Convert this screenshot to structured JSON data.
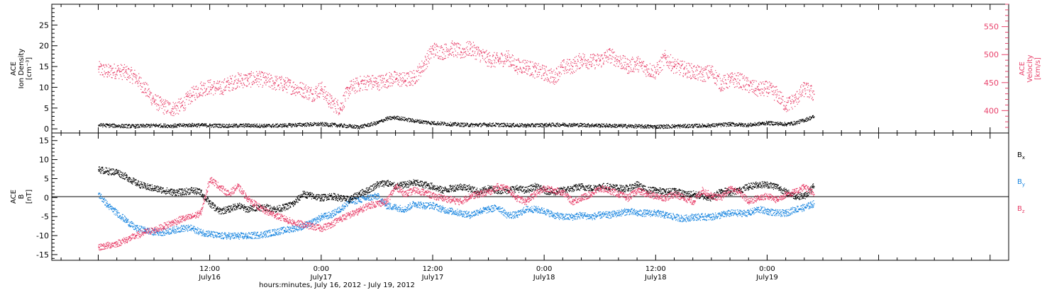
{
  "chart_data": [
    {
      "type": "scatter",
      "panel": "top",
      "ylabel_left": [
        "ACE",
        "Ion Density",
        "[cm⁻³]"
      ],
      "ylabel_right": [
        "ACE",
        "Velocity",
        "[km/s]"
      ],
      "ylim_left": [
        -1,
        30
      ],
      "ylim_right": [
        360,
        590
      ],
      "yticks_left": [
        0,
        5,
        10,
        15,
        20,
        25
      ],
      "yticks_right": [
        400,
        450,
        500,
        550
      ],
      "series": [
        {
          "axis": "left",
          "color": "#000000",
          "x_hours": [
            0,
            2,
            4,
            6,
            8,
            10,
            12,
            14,
            16,
            18,
            20,
            22,
            24,
            26,
            28,
            30,
            31,
            32,
            33,
            34,
            36,
            38,
            40,
            42,
            44,
            46,
            48,
            50,
            52,
            54,
            56,
            58,
            60,
            62,
            64,
            66,
            68,
            70,
            72,
            74,
            75,
            76,
            77
          ],
          "values": [
            1.0,
            0.8,
            0.7,
            0.9,
            0.8,
            1.0,
            0.9,
            0.8,
            0.9,
            0.8,
            0.9,
            1.1,
            1.2,
            0.9,
            0.5,
            1.5,
            2.5,
            2.8,
            2.4,
            2.0,
            1.5,
            1.2,
            1.0,
            1.1,
            1.0,
            0.9,
            1.0,
            1.1,
            1.0,
            0.9,
            0.8,
            0.7,
            0.6,
            0.7,
            0.8,
            0.9,
            1.2,
            1.0,
            1.5,
            1.2,
            1.5,
            2.2,
            3.0
          ]
        },
        {
          "axis": "right",
          "color": "#e8406a",
          "x_hours": [
            0,
            1,
            2,
            3,
            4,
            5,
            6,
            7,
            8,
            9,
            10,
            11,
            12,
            13,
            14,
            15,
            16,
            17,
            18,
            19,
            20,
            21,
            22,
            23,
            24,
            25,
            26,
            27,
            28,
            29,
            30,
            31,
            32,
            33,
            34,
            35,
            36,
            37,
            38,
            39,
            40,
            41,
            42,
            43,
            44,
            45,
            46,
            47,
            48,
            49,
            50,
            51,
            52,
            53,
            54,
            55,
            56,
            57,
            58,
            59,
            60,
            61,
            62,
            63,
            64,
            65,
            66,
            67,
            68,
            69,
            70,
            71,
            72,
            73,
            74,
            75,
            76,
            77
          ],
          "values": [
            475,
            470,
            472,
            468,
            460,
            440,
            418,
            408,
            404,
            410,
            428,
            440,
            443,
            440,
            448,
            455,
            455,
            458,
            455,
            450,
            448,
            442,
            438,
            430,
            440,
            415,
            405,
            440,
            448,
            452,
            450,
            455,
            458,
            455,
            460,
            482,
            510,
            505,
            512,
            505,
            512,
            502,
            492,
            490,
            496,
            480,
            480,
            472,
            468,
            460,
            478,
            480,
            492,
            488,
            490,
            500,
            490,
            480,
            485,
            475,
            470,
            495,
            480,
            475,
            470,
            465,
            470,
            448,
            455,
            455,
            445,
            438,
            440,
            430,
            410,
            420,
            440,
            430
          ]
        }
      ]
    },
    {
      "type": "scatter",
      "panel": "bottom",
      "ylabel_left": [
        "ACE",
        "B",
        "[nT]"
      ],
      "ylim_left": [
        -16.5,
        17
      ],
      "yticks_left": [
        -15,
        -10,
        -5,
        0,
        5,
        10,
        15
      ],
      "legend": [
        "Bx",
        "By",
        "Bz"
      ],
      "series": [
        {
          "name": "Bx",
          "color": "#000000",
          "x_hours": [
            0,
            1,
            2,
            3,
            4,
            5,
            6,
            7,
            8,
            9,
            10,
            11,
            12,
            13,
            14,
            15,
            16,
            17,
            18,
            19,
            20,
            21,
            22,
            23,
            24,
            25,
            26,
            27,
            28,
            29,
            30,
            31,
            32,
            33,
            34,
            35,
            36,
            37,
            38,
            39,
            40,
            41,
            42,
            43,
            44,
            45,
            46,
            47,
            48,
            49,
            50,
            51,
            52,
            53,
            54,
            55,
            56,
            57,
            58,
            59,
            60,
            61,
            62,
            63,
            64,
            65,
            66,
            67,
            68,
            69,
            70,
            71,
            72,
            73,
            74,
            75,
            76,
            77
          ],
          "values": [
            7.5,
            7.0,
            6.8,
            5.5,
            4.0,
            3.0,
            2.5,
            2.0,
            1.5,
            1.5,
            2.0,
            1.5,
            -1.5,
            -3.5,
            -3.0,
            -2.0,
            -3.0,
            -2.5,
            -2.5,
            -3.0,
            -2.5,
            -1.5,
            1.0,
            0.5,
            0.0,
            0.5,
            0.0,
            -0.5,
            1.0,
            2.0,
            3.5,
            4.0,
            3.0,
            3.5,
            4.0,
            3.5,
            3.0,
            2.0,
            2.5,
            3.0,
            2.5,
            1.5,
            2.5,
            2.0,
            2.0,
            2.5,
            2.0,
            3.0,
            2.0,
            1.5,
            2.0,
            2.5,
            3.0,
            2.5,
            3.0,
            3.0,
            2.5,
            2.5,
            3.5,
            2.0,
            2.0,
            1.5,
            2.0,
            1.0,
            1.0,
            0.5,
            0.0,
            2.0,
            1.5,
            2.0,
            3.0,
            3.5,
            3.5,
            3.0,
            1.5,
            0.5,
            0.5,
            3.0
          ]
        },
        {
          "name": "By",
          "color": "#1a86e0",
          "x_hours": [
            0,
            1,
            2,
            3,
            4,
            5,
            6,
            7,
            8,
            9,
            10,
            11,
            12,
            13,
            14,
            15,
            16,
            17,
            18,
            19,
            20,
            21,
            22,
            23,
            24,
            25,
            26,
            27,
            28,
            29,
            30,
            31,
            32,
            33,
            34,
            35,
            36,
            37,
            38,
            39,
            40,
            41,
            42,
            43,
            44,
            45,
            46,
            47,
            48,
            49,
            50,
            51,
            52,
            53,
            54,
            55,
            56,
            57,
            58,
            59,
            60,
            61,
            62,
            63,
            64,
            65,
            66,
            67,
            68,
            69,
            70,
            71,
            72,
            73,
            74,
            75,
            76,
            77
          ],
          "values": [
            1.0,
            -2.0,
            -4.0,
            -6.0,
            -8.0,
            -8.5,
            -9.0,
            -9.0,
            -8.5,
            -8.0,
            -8.0,
            -9.0,
            -9.5,
            -10.0,
            -10.0,
            -10.0,
            -10.0,
            -9.8,
            -9.5,
            -9.0,
            -8.5,
            -8.0,
            -7.5,
            -6.5,
            -5.0,
            -4.5,
            -3.0,
            -1.0,
            -0.5,
            0.0,
            0.5,
            -2.0,
            -2.5,
            -3.0,
            -1.5,
            -2.0,
            -2.0,
            -3.0,
            -3.5,
            -4.0,
            -4.5,
            -3.5,
            -3.0,
            -2.5,
            -4.5,
            -4.5,
            -3.0,
            -3.0,
            -3.5,
            -4.5,
            -5.0,
            -5.0,
            -4.5,
            -5.0,
            -4.5,
            -4.5,
            -4.0,
            -3.5,
            -4.0,
            -4.0,
            -4.0,
            -4.5,
            -5.0,
            -5.5,
            -5.0,
            -5.0,
            -5.0,
            -4.5,
            -4.0,
            -4.0,
            -4.0,
            -3.0,
            -3.5,
            -4.0,
            -4.0,
            -3.0,
            -2.5,
            -1.5
          ]
        },
        {
          "name": "Bz",
          "color": "#e8406a",
          "x_hours": [
            0,
            1,
            2,
            3,
            4,
            5,
            6,
            7,
            8,
            9,
            10,
            11,
            12,
            13,
            14,
            15,
            16,
            17,
            18,
            19,
            20,
            21,
            22,
            23,
            24,
            25,
            26,
            27,
            28,
            29,
            30,
            31,
            32,
            33,
            34,
            35,
            36,
            37,
            38,
            39,
            40,
            41,
            42,
            43,
            44,
            45,
            46,
            47,
            48,
            49,
            50,
            51,
            52,
            53,
            54,
            55,
            56,
            57,
            58,
            59,
            60,
            61,
            62,
            63,
            64,
            65,
            66,
            67,
            68,
            69,
            70,
            71,
            72,
            73,
            74,
            75,
            76,
            77
          ],
          "values": [
            -13.0,
            -12.5,
            -12.0,
            -11.0,
            -10.0,
            -9.0,
            -8.5,
            -7.5,
            -6.5,
            -5.5,
            -5.0,
            -4.0,
            5.0,
            3.0,
            1.0,
            3.0,
            0.0,
            -2.0,
            -3.5,
            -4.5,
            -5.5,
            -6.5,
            -7.0,
            -7.5,
            -8.0,
            -7.0,
            -5.5,
            -4.5,
            -3.5,
            -2.0,
            -1.5,
            -1.0,
            3.0,
            1.0,
            2.0,
            1.5,
            0.5,
            0.0,
            -0.5,
            -1.0,
            0.5,
            1.0,
            1.5,
            3.0,
            2.5,
            0.0,
            -1.0,
            1.0,
            2.5,
            2.0,
            1.5,
            -1.0,
            0.0,
            1.0,
            2.5,
            2.0,
            1.0,
            0.0,
            2.0,
            1.0,
            0.5,
            0.0,
            1.0,
            0.0,
            -1.0,
            2.0,
            0.5,
            0.0,
            2.5,
            1.5,
            -1.0,
            0.0,
            0.5,
            -0.5,
            1.0,
            1.5,
            3.0,
            1.0
          ]
        }
      ]
    }
  ],
  "x_axis": {
    "range_hours": [
      -5,
      98
    ],
    "labels": [
      {
        "hour": 12,
        "time": "12:00",
        "date": "July16"
      },
      {
        "hour": 24,
        "time": "0:00",
        "date": "July17"
      },
      {
        "hour": 36,
        "time": "12:00",
        "date": "July17"
      },
      {
        "hour": 48,
        "time": "0:00",
        "date": "July18"
      },
      {
        "hour": 60,
        "time": "12:00",
        "date": "July18"
      },
      {
        "hour": 72,
        "time": "0:00",
        "date": "July19"
      }
    ],
    "title": "hours:minutes, July 16, 2012 - July 19, 2012"
  }
}
